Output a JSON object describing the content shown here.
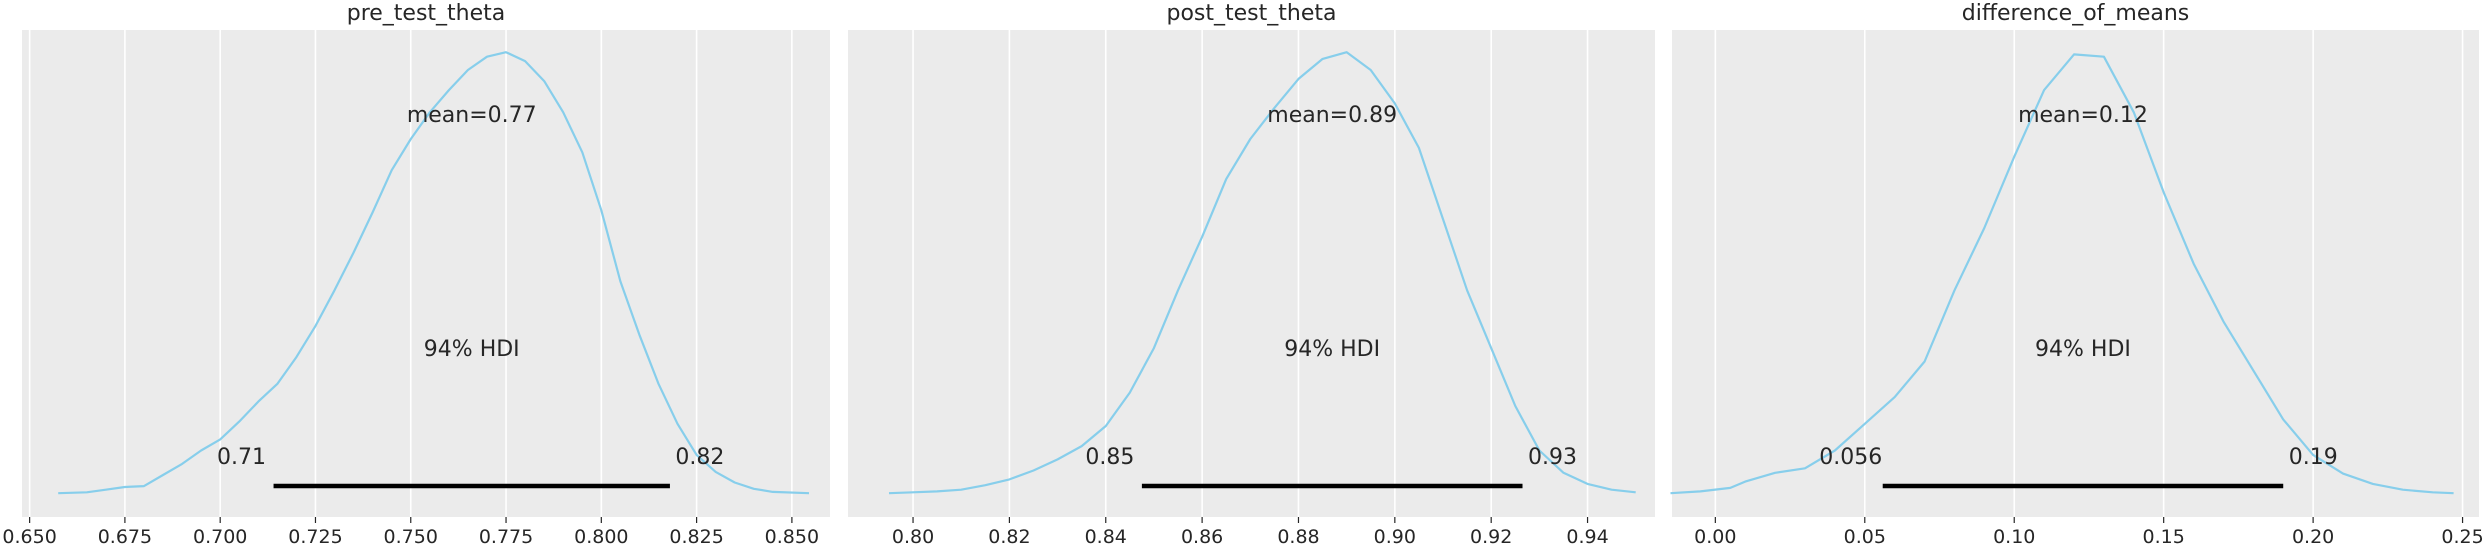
{
  "chart_data": [
    {
      "type": "line",
      "title": "pre_test_theta",
      "xlim": [
        0.648,
        0.86
      ],
      "ticks": [
        "0.650",
        "0.675",
        "0.700",
        "0.725",
        "0.750",
        "0.775",
        "0.800",
        "0.825",
        "0.850"
      ],
      "tick_values": [
        0.65,
        0.675,
        0.7,
        0.725,
        0.75,
        0.775,
        0.8,
        0.825,
        0.85
      ],
      "x": [
        0.6575,
        0.665,
        0.67,
        0.675,
        0.68,
        0.685,
        0.69,
        0.695,
        0.7,
        0.705,
        0.71,
        0.715,
        0.72,
        0.725,
        0.73,
        0.735,
        0.74,
        0.745,
        0.75,
        0.755,
        0.76,
        0.765,
        0.77,
        0.775,
        0.78,
        0.785,
        0.79,
        0.795,
        0.8,
        0.805,
        0.81,
        0.815,
        0.82,
        0.825,
        0.83,
        0.835,
        0.84,
        0.845,
        0.8545
      ],
      "density": [
        0.004,
        0.006,
        0.012,
        0.018,
        0.02,
        0.045,
        0.07,
        0.1,
        0.125,
        0.165,
        0.21,
        0.25,
        0.31,
        0.38,
        0.46,
        0.545,
        0.635,
        0.73,
        0.8,
        0.86,
        0.91,
        0.955,
        0.985,
        0.995,
        0.975,
        0.93,
        0.86,
        0.77,
        0.64,
        0.48,
        0.36,
        0.25,
        0.16,
        0.09,
        0.052,
        0.028,
        0.014,
        0.007,
        0.004
      ],
      "mean_label": "mean=0.77",
      "hdi_label": "94% HDI",
      "hdi": [
        0.714,
        0.818
      ],
      "hdi_low_label": "0.71",
      "hdi_high_label": "0.82",
      "grid": true
    },
    {
      "type": "line",
      "title": "post_test_theta",
      "xlim": [
        0.7865,
        0.954
      ],
      "ticks": [
        "0.80",
        "0.82",
        "0.84",
        "0.86",
        "0.88",
        "0.90",
        "0.92",
        "0.94"
      ],
      "tick_values": [
        0.8,
        0.82,
        0.84,
        0.86,
        0.88,
        0.9,
        0.92,
        0.94
      ],
      "x": [
        0.795,
        0.8,
        0.805,
        0.81,
        0.815,
        0.82,
        0.825,
        0.83,
        0.835,
        0.84,
        0.845,
        0.85,
        0.855,
        0.86,
        0.865,
        0.87,
        0.875,
        0.88,
        0.885,
        0.89,
        0.895,
        0.9,
        0.905,
        0.91,
        0.915,
        0.92,
        0.925,
        0.93,
        0.935,
        0.94,
        0.945,
        0.95
      ],
      "density": [
        0.004,
        0.006,
        0.008,
        0.012,
        0.022,
        0.035,
        0.055,
        0.08,
        0.11,
        0.155,
        0.23,
        0.33,
        0.46,
        0.58,
        0.71,
        0.8,
        0.87,
        0.935,
        0.98,
        0.995,
        0.955,
        0.88,
        0.78,
        0.62,
        0.46,
        0.33,
        0.2,
        0.1,
        0.05,
        0.025,
        0.012,
        0.006
      ],
      "mean_label": "mean=0.89",
      "hdi_label": "94% HDI",
      "hdi": [
        0.8475,
        0.9265
      ],
      "hdi_low_label": "0.85",
      "hdi_high_label": "0.93",
      "grid": true
    },
    {
      "type": "line",
      "title": "difference_of_means",
      "xlim": [
        -0.0145,
        0.2555
      ],
      "ticks": [
        "0.00",
        "0.05",
        "0.10",
        "0.15",
        "0.20",
        "0.25"
      ],
      "tick_values": [
        0.0,
        0.05,
        0.1,
        0.15,
        0.2,
        0.25
      ],
      "x": [
        -0.015,
        -0.005,
        0.005,
        0.01,
        0.02,
        0.03,
        0.04,
        0.05,
        0.06,
        0.07,
        0.08,
        0.09,
        0.1,
        0.11,
        0.12,
        0.13,
        0.14,
        0.15,
        0.16,
        0.17,
        0.18,
        0.19,
        0.2,
        0.21,
        0.22,
        0.23,
        0.24,
        0.247
      ],
      "density": [
        0.004,
        0.008,
        0.016,
        0.03,
        0.05,
        0.06,
        0.1,
        0.16,
        0.22,
        0.3,
        0.46,
        0.6,
        0.76,
        0.91,
        0.99,
        0.985,
        0.86,
        0.68,
        0.52,
        0.39,
        0.28,
        0.17,
        0.09,
        0.048,
        0.025,
        0.012,
        0.006,
        0.004
      ],
      "mean_label": "mean=0.12",
      "hdi_label": "94% HDI",
      "hdi": [
        0.056,
        0.19
      ],
      "hdi_low_label": "0.056",
      "hdi_high_label": "0.19",
      "grid": true
    }
  ],
  "colors": {
    "background": "#ebebeb",
    "grid": "#ffffff",
    "curve": "#87ceeb",
    "hdi_bar": "#000000",
    "text": "#262626"
  }
}
